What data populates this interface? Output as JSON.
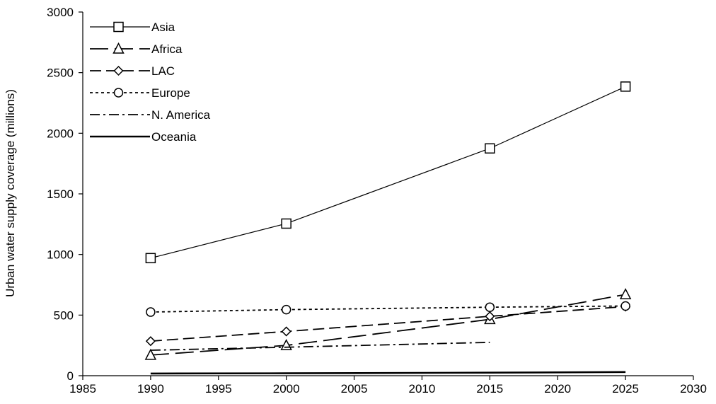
{
  "chart_data": {
    "type": "line",
    "title": "",
    "xlabel": "",
    "ylabel": "Urban water supply coverage (millions)",
    "xlim": [
      1985,
      2030
    ],
    "ylim": [
      0,
      3000
    ],
    "xticks": [
      1985,
      1990,
      1995,
      2000,
      2005,
      2010,
      2015,
      2020,
      2025,
      2030
    ],
    "yticks": [
      0,
      500,
      1000,
      1500,
      2000,
      2500,
      3000
    ],
    "grid": false,
    "legend_position": "top-left",
    "series": [
      {
        "name": "Asia",
        "x": [
          1990,
          2000,
          2015,
          2025
        ],
        "y": [
          970,
          1255,
          1875,
          2385
        ],
        "marker": "square",
        "dash": "solid",
        "stroke_weight": "thin"
      },
      {
        "name": "Africa",
        "x": [
          1990,
          2000,
          2015,
          2025
        ],
        "y": [
          170,
          250,
          465,
          670
        ],
        "marker": "triangle",
        "dash": "long-dash",
        "stroke_weight": "medium"
      },
      {
        "name": "LAC",
        "x": [
          1990,
          2000,
          2015,
          2025
        ],
        "y": [
          285,
          365,
          490,
          570
        ],
        "marker": "diamond",
        "dash": "dash",
        "stroke_weight": "medium"
      },
      {
        "name": "Europe",
        "x": [
          1990,
          2000,
          2015,
          2025
        ],
        "y": [
          525,
          545,
          565,
          575
        ],
        "marker": "circle",
        "dash": "dotted",
        "stroke_weight": "medium"
      },
      {
        "name": "N. America",
        "x": [
          1990,
          2000,
          2015
        ],
        "y": [
          210,
          235,
          275
        ],
        "marker": "none",
        "dash": "dash-dot",
        "stroke_weight": "medium"
      },
      {
        "name": "Oceania",
        "x": [
          1990,
          2000,
          2015,
          2025
        ],
        "y": [
          18,
          20,
          25,
          30
        ],
        "marker": "none",
        "dash": "solid",
        "stroke_weight": "thick"
      }
    ]
  }
}
